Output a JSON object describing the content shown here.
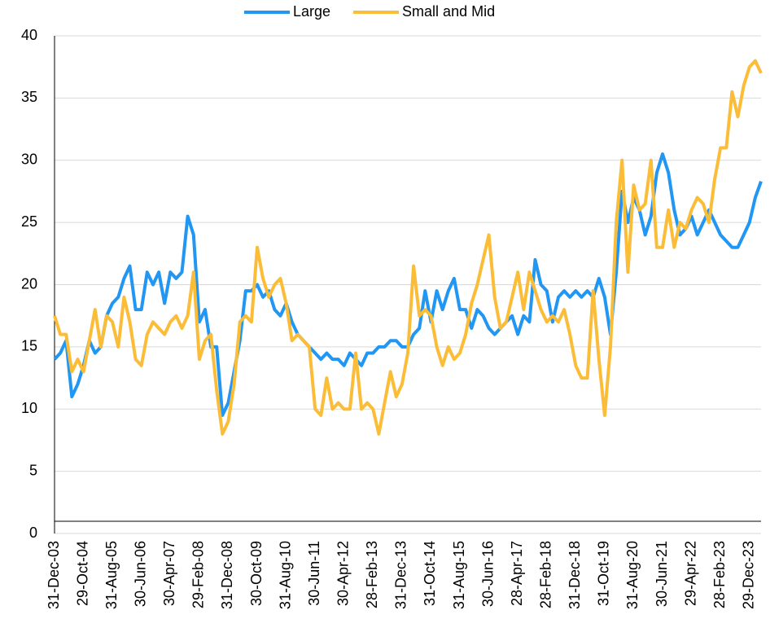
{
  "chart_data": {
    "type": "line",
    "categories": [
      "31-Dec-03",
      null,
      null,
      null,
      null,
      "29-Oct-04",
      null,
      null,
      null,
      null,
      "31-Aug-05",
      null,
      null,
      null,
      null,
      "30-Jun-06",
      null,
      null,
      null,
      null,
      "30-Apr-07",
      null,
      null,
      null,
      null,
      "29-Feb-08",
      null,
      null,
      null,
      null,
      "31-Dec-08",
      null,
      null,
      null,
      null,
      "30-Oct-09",
      null,
      null,
      null,
      null,
      "31-Aug-10",
      null,
      null,
      null,
      null,
      "30-Jun-11",
      null,
      null,
      null,
      null,
      "30-Apr-12",
      null,
      null,
      null,
      null,
      "28-Feb-13",
      null,
      null,
      null,
      null,
      "31-Dec-13",
      null,
      null,
      null,
      null,
      "31-Oct-14",
      null,
      null,
      null,
      null,
      "31-Aug-15",
      null,
      null,
      null,
      null,
      "30-Jun-16",
      null,
      null,
      null,
      null,
      "28-Apr-17",
      null,
      null,
      null,
      null,
      "28-Feb-18",
      null,
      null,
      null,
      null,
      "31-Dec-18",
      null,
      null,
      null,
      null,
      "31-Oct-19",
      null,
      null,
      null,
      null,
      "31-Aug-20",
      null,
      null,
      null,
      null,
      "30-Jun-21",
      null,
      null,
      null,
      null,
      "29-Apr-22",
      null,
      null,
      null,
      null,
      "28-Feb-23",
      null,
      null,
      null,
      null,
      "29-Dec-23",
      null,
      null
    ],
    "series": [
      {
        "name": "Large",
        "color": "#2196f3",
        "values": [
          14,
          14.5,
          15.5,
          11,
          12,
          13.5,
          15.5,
          14.5,
          15,
          17.5,
          18.5,
          19,
          20.5,
          21.5,
          18,
          18,
          21,
          20,
          21,
          18.5,
          21,
          20.5,
          21,
          25.5,
          24,
          17,
          18,
          15,
          15,
          9.5,
          10.5,
          13,
          15.5,
          19.5,
          19.5,
          20,
          19,
          19.5,
          18,
          17.5,
          18.5,
          17,
          16,
          15.5,
          15,
          14.5,
          14,
          14.5,
          14,
          14,
          13.5,
          14.5,
          14,
          13.5,
          14.5,
          14.5,
          15,
          15,
          15.5,
          15.5,
          15,
          15,
          16,
          16.5,
          19.5,
          17,
          19.5,
          18,
          19.5,
          20.5,
          18,
          18,
          16.5,
          18,
          17.5,
          16.5,
          16,
          16.5,
          17,
          17.5,
          16,
          17.5,
          17,
          22,
          20,
          19.5,
          17,
          19,
          19.5,
          19,
          19.5,
          19,
          19.5,
          19,
          20.5,
          19,
          16,
          21,
          27.5,
          25,
          27,
          26,
          24,
          25.5,
          29,
          30.5,
          29,
          26,
          24,
          24.5,
          25.5,
          24,
          25,
          26,
          25,
          24,
          23.5,
          23,
          23,
          24,
          25,
          27,
          28.3
        ]
      },
      {
        "name": "Small and Mid",
        "color": "#fbbd38",
        "values": [
          17.5,
          16,
          16,
          13,
          14,
          13,
          15.5,
          18,
          15,
          17.5,
          17,
          15,
          19,
          17,
          14,
          13.5,
          16,
          17,
          16.5,
          16,
          17,
          17.5,
          16.5,
          17.5,
          21,
          14,
          15.5,
          16,
          11.5,
          8,
          9,
          12,
          17,
          17.5,
          17,
          23,
          20.5,
          19,
          20,
          20.5,
          18.5,
          15.5,
          16,
          15.5,
          15,
          10,
          9.5,
          12.5,
          10,
          10.5,
          10,
          10,
          14.5,
          10,
          10.5,
          10,
          8,
          10.5,
          13,
          11,
          12,
          14.5,
          21.5,
          17.5,
          18,
          17.5,
          15,
          13.5,
          15,
          14,
          14.5,
          16,
          18.5,
          20,
          22,
          24,
          19,
          16.5,
          17,
          19,
          21,
          18,
          21,
          19.5,
          18,
          17,
          17.5,
          17,
          18,
          16,
          13.5,
          12.5,
          12.5,
          19.5,
          14,
          9.5,
          15,
          25,
          30,
          21,
          28,
          26,
          26.5,
          30,
          23,
          23,
          26,
          23,
          25,
          24.5,
          26,
          27,
          26.5,
          25,
          28.5,
          31,
          31,
          35.5,
          33.5,
          36,
          37.5,
          38,
          37
        ]
      }
    ],
    "ylim": [
      0,
      40
    ],
    "yticks": [
      0,
      5,
      10,
      15,
      20,
      25,
      30,
      35,
      40
    ],
    "grid": true,
    "legend": "top"
  }
}
